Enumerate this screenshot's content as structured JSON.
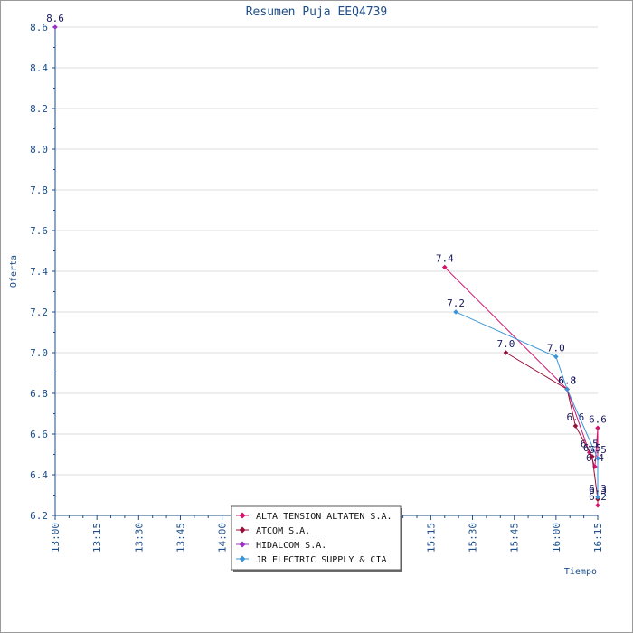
{
  "chart_data": {
    "type": "line",
    "title": "Resumen Puja EEQ4739",
    "xlabel": "Tiempo",
    "ylabel": "Oferta",
    "x_ticks": [
      "13:00",
      "13:15",
      "13:30",
      "13:45",
      "14:00",
      "14:15",
      "14:30",
      "14:45",
      "15:00",
      "15:15",
      "15:30",
      "15:45",
      "16:00",
      "16:15"
    ],
    "xlim": [
      "13:00",
      "16:15"
    ],
    "ylim": [
      6.2,
      8.6
    ],
    "y_ticks": [
      6.2,
      6.4,
      6.6,
      6.8,
      7.0,
      7.2,
      7.4,
      7.6,
      7.8,
      8.0,
      8.2,
      8.4,
      8.6
    ],
    "grid": true,
    "legend_position": "bottom-center",
    "series": [
      {
        "name": "ALTA TENSION ALTATEN S.A.",
        "color": "#d4146e",
        "points": [
          {
            "x": "15:20",
            "y": 7.42,
            "label": "7.4"
          },
          {
            "x": "16:04",
            "y": 6.82,
            "label": "6.8"
          },
          {
            "x": "16:12",
            "y": 6.51,
            "label": "6.5"
          },
          {
            "x": "16:14",
            "y": 6.44,
            "label": "6.4"
          },
          {
            "x": "16:15",
            "y": 6.63,
            "label": "6.6"
          },
          {
            "x": "16:15",
            "y": 6.25,
            "label": "6.2"
          }
        ]
      },
      {
        "name": "ATCOM S.A.",
        "color": "#9a0f3a",
        "points": [
          {
            "x": "15:42",
            "y": 7.0,
            "label": "7.0"
          },
          {
            "x": "16:04",
            "y": 6.82,
            "label": "6.8"
          },
          {
            "x": "16:07",
            "y": 6.64,
            "label": "6.6"
          },
          {
            "x": "16:13",
            "y": 6.49,
            "label": "6.5"
          },
          {
            "x": "16:15",
            "y": 6.28,
            "label": "6.3"
          }
        ]
      },
      {
        "name": "HIDALCOM S.A.",
        "color": "#9b30c8",
        "points": [
          {
            "x": "13:00",
            "y": 8.6,
            "label": "8.6"
          }
        ]
      },
      {
        "name": "JR ELECTRIC SUPPLY & CIA",
        "color": "#3a95d8",
        "points": [
          {
            "x": "15:24",
            "y": 7.2,
            "label": "7.2"
          },
          {
            "x": "16:00",
            "y": 6.98,
            "label": "7.0"
          },
          {
            "x": "16:04",
            "y": 6.82,
            "label": "6.8"
          },
          {
            "x": "16:15",
            "y": 6.48,
            "label": "6.5"
          },
          {
            "x": "16:15",
            "y": 6.29,
            "label": "6.3"
          }
        ]
      }
    ]
  }
}
